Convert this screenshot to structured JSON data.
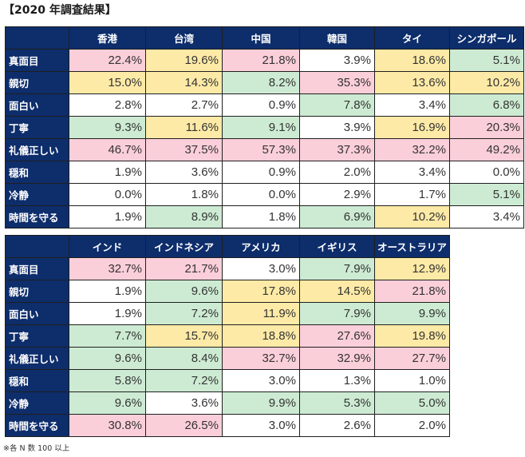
{
  "title": "【2020 年調査結果】",
  "row_labels": [
    "真面目",
    "親切",
    "面白い",
    "丁寧",
    "礼儀正しい",
    "穏和",
    "冷静",
    "時間を守る"
  ],
  "colors": {
    "header_bg": "#0d2d6b",
    "highlight_red": "#fbcfd9",
    "highlight_yellow": "#fdeaa6",
    "highlight_green": "#cdebd3"
  },
  "tables": [
    {
      "countries": [
        "香港",
        "台湾",
        "中国",
        "韓国",
        "タイ",
        "シンガポール"
      ],
      "values": [
        [
          "22.4%",
          "19.6%",
          "21.8%",
          "3.9%",
          "18.6%",
          "5.1%"
        ],
        [
          "15.0%",
          "14.3%",
          "8.2%",
          "35.3%",
          "13.6%",
          "10.2%"
        ],
        [
          "2.8%",
          "2.7%",
          "0.9%",
          "7.8%",
          "3.4%",
          "6.8%"
        ],
        [
          "9.3%",
          "11.6%",
          "9.1%",
          "3.9%",
          "16.9%",
          "20.3%"
        ],
        [
          "46.7%",
          "37.5%",
          "57.3%",
          "37.3%",
          "32.2%",
          "49.2%"
        ],
        [
          "1.9%",
          "3.6%",
          "0.9%",
          "2.0%",
          "3.4%",
          "0.0%"
        ],
        [
          "0.0%",
          "1.8%",
          "0.0%",
          "2.9%",
          "1.7%",
          "5.1%"
        ],
        [
          "1.9%",
          "8.9%",
          "1.8%",
          "6.9%",
          "10.2%",
          "3.4%"
        ]
      ],
      "highlights": [
        [
          "r",
          "y",
          "r",
          "w",
          "y",
          "g"
        ],
        [
          "y",
          "y",
          "g",
          "r",
          "y",
          "y"
        ],
        [
          "w",
          "w",
          "w",
          "g",
          "w",
          "g"
        ],
        [
          "g",
          "y",
          "g",
          "w",
          "y",
          "r"
        ],
        [
          "r",
          "r",
          "r",
          "r",
          "r",
          "r"
        ],
        [
          "w",
          "w",
          "w",
          "w",
          "w",
          "w"
        ],
        [
          "w",
          "w",
          "w",
          "w",
          "w",
          "g"
        ],
        [
          "w",
          "g",
          "w",
          "g",
          "y",
          "w"
        ]
      ]
    },
    {
      "countries": [
        "インド",
        "インドネシア",
        "アメリカ",
        "イギリス",
        "オーストラリア"
      ],
      "values": [
        [
          "32.7%",
          "21.7%",
          "3.0%",
          "7.9%",
          "12.9%"
        ],
        [
          "1.9%",
          "9.6%",
          "17.8%",
          "14.5%",
          "21.8%"
        ],
        [
          "1.9%",
          "7.2%",
          "11.9%",
          "7.9%",
          "9.9%"
        ],
        [
          "7.7%",
          "15.7%",
          "18.8%",
          "27.6%",
          "19.8%"
        ],
        [
          "9.6%",
          "8.4%",
          "32.7%",
          "32.9%",
          "27.7%"
        ],
        [
          "5.8%",
          "7.2%",
          "3.0%",
          "1.3%",
          "1.0%"
        ],
        [
          "9.6%",
          "3.6%",
          "9.9%",
          "5.3%",
          "5.0%"
        ],
        [
          "30.8%",
          "26.5%",
          "3.0%",
          "2.6%",
          "2.0%"
        ]
      ],
      "highlights": [
        [
          "r",
          "r",
          "w",
          "g",
          "y"
        ],
        [
          "w",
          "g",
          "y",
          "y",
          "r"
        ],
        [
          "w",
          "g",
          "y",
          "g",
          "g"
        ],
        [
          "g",
          "y",
          "y",
          "r",
          "y"
        ],
        [
          "g",
          "g",
          "r",
          "r",
          "r"
        ],
        [
          "g",
          "g",
          "w",
          "w",
          "w"
        ],
        [
          "g",
          "w",
          "g",
          "g",
          "g"
        ],
        [
          "r",
          "r",
          "w",
          "w",
          "w"
        ]
      ]
    }
  ],
  "footnote": "※各 N 数 100 以上"
}
